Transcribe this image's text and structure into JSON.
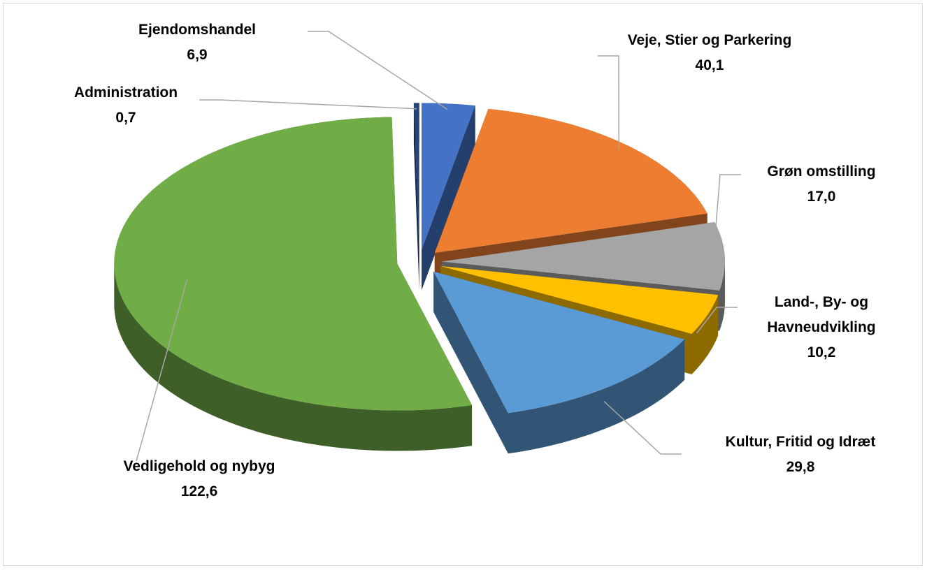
{
  "chart_data": {
    "type": "pie",
    "categories": [
      "Ejendomshandel",
      "Veje, Stier og Parkering",
      "Grøn omstilling",
      "Land-, By- og Havneudvikling",
      "Kultur, Fritid og Idræt",
      "Vedligehold og nybyg",
      "Administration"
    ],
    "values": [
      6.9,
      40.1,
      17.0,
      10.2,
      29.8,
      122.6,
      0.7
    ],
    "value_labels": [
      "6,9",
      "40,1",
      "17,0",
      "10,2",
      "29,8",
      "122,6",
      "0,7"
    ],
    "colors": [
      "#4472c4",
      "#ed7d31",
      "#a5a5a5",
      "#ffc000",
      "#5b9bd5",
      "#70ad47",
      "#264478"
    ]
  }
}
